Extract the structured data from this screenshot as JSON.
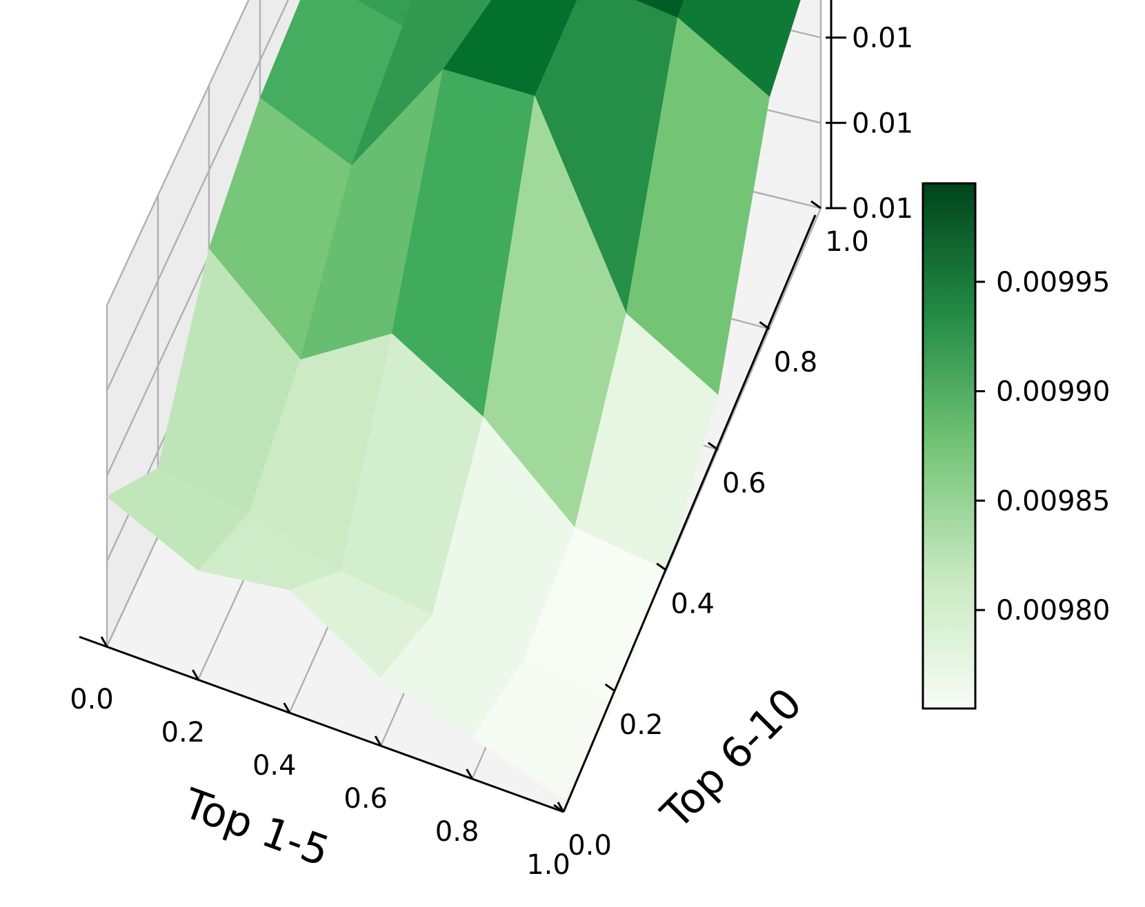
{
  "chart_data": {
    "type": "surface3d",
    "colormap": "Greens",
    "xlabel": "Top 1-5",
    "ylabel": "Top 6-10",
    "x": [
      0.0,
      0.2,
      0.4,
      0.6,
      0.8,
      1.0
    ],
    "y": [
      0.0,
      0.2,
      0.4,
      0.6,
      0.8,
      1.0
    ],
    "xticks": [
      "0.0",
      "0.2",
      "0.4",
      "0.6",
      "0.8",
      "1.0"
    ],
    "yticks": [
      "0.0",
      "0.2",
      "0.4",
      "0.6",
      "0.8",
      "1.0"
    ],
    "zticks": [
      "0.01",
      "0.01",
      "0.01",
      "0.01",
      "0.01"
    ],
    "zlim": [
      0.00975,
      0.01
    ],
    "z": [
      [
        0.00986,
        0.0098,
        0.00988,
        0.00991,
        0.00992,
        0.00993
      ],
      [
        0.00983,
        0.00979,
        0.00982,
        0.00988,
        0.0099,
        0.00992
      ],
      [
        0.00984,
        0.00977,
        0.00986,
        0.00997,
        0.00994,
        0.00993
      ],
      [
        0.0098,
        0.00976,
        0.00982,
        0.00997,
        0.00997,
        0.01
      ],
      [
        0.00978,
        0.00975,
        0.00976,
        0.00983,
        0.00996,
        0.00998
      ],
      [
        0.00976,
        0.00974,
        0.00975,
        0.00979,
        0.00992,
        0.00995
      ]
    ],
    "colorbar": {
      "ticks": [
        "0.00980",
        "0.00985",
        "0.00990",
        "0.00995"
      ],
      "tick_values": [
        0.0098,
        0.00985,
        0.0099,
        0.00995
      ],
      "range": [
        0.009755,
        0.009995
      ]
    }
  }
}
